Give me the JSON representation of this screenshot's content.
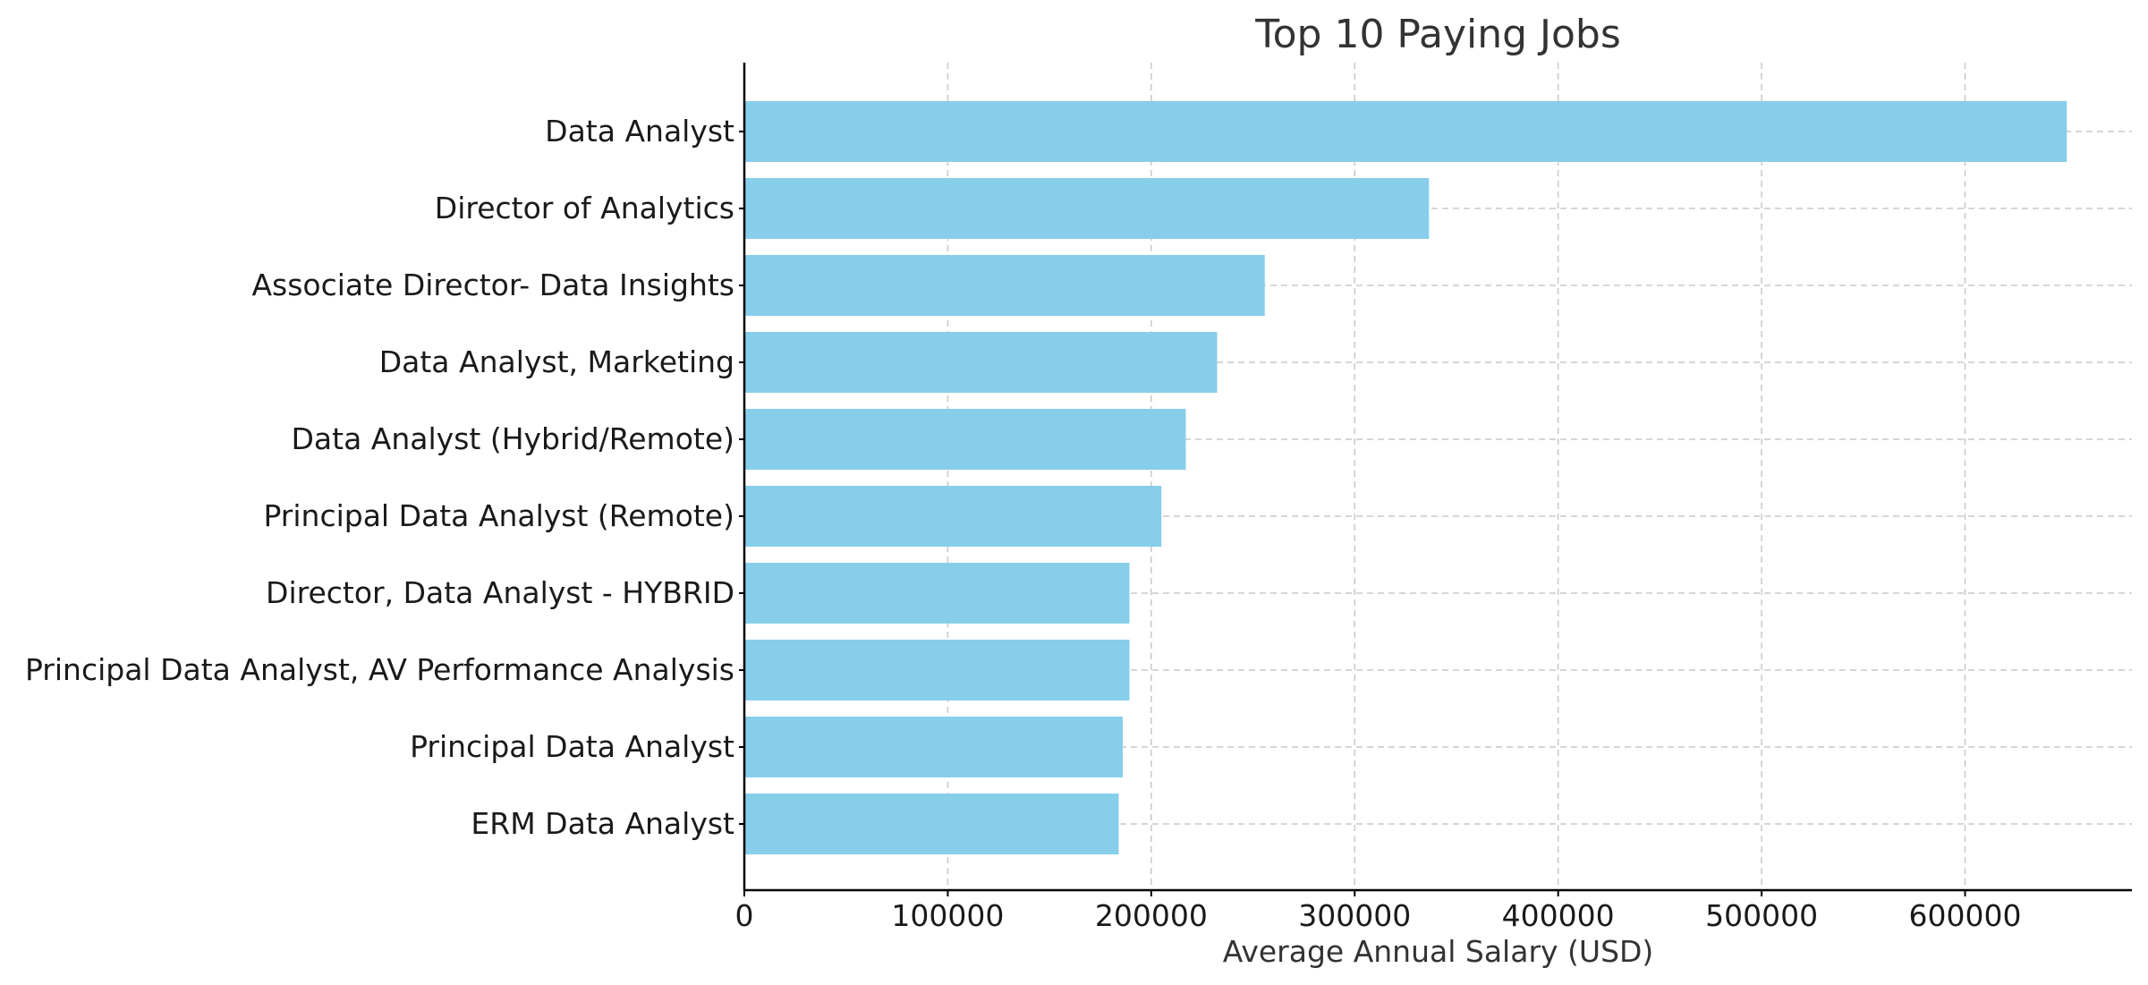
{
  "chart_data": {
    "type": "bar",
    "orientation": "horizontal",
    "title": "Top 10 Paying Jobs",
    "xlabel": "Average Annual Salary (USD)",
    "ylabel": "",
    "categories": [
      "Data Analyst",
      "Director of Analytics",
      "Associate Director- Data Insights",
      "Data Analyst, Marketing",
      "Data Analyst (Hybrid/Remote)",
      "Principal Data Analyst (Remote)",
      "Director, Data Analyst - HYBRID",
      "Principal Data Analyst, AV Performance Analysis",
      "Principal Data Analyst",
      "ERM Data Analyst"
    ],
    "values": [
      650000,
      336500,
      255800,
      232400,
      217000,
      205000,
      189300,
      189300,
      186000,
      184000
    ],
    "xlim": [
      0,
      682000
    ],
    "xticks": [
      0,
      100000,
      200000,
      300000,
      400000,
      500000,
      600000
    ],
    "xtick_labels": [
      "0",
      "100000",
      "200000",
      "300000",
      "400000",
      "500000",
      "600000"
    ],
    "grid": true,
    "bar_color": "#87CEEB"
  }
}
